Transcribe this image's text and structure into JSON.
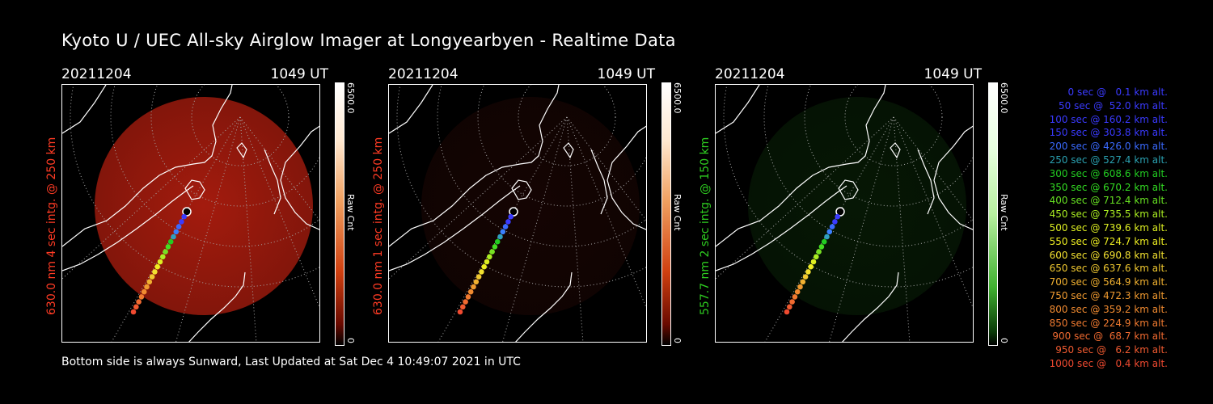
{
  "title": "Kyoto U / UEC All-sky Airglow Imager at Longyearbyen - Realtime Data",
  "footer": "Bottom side is always Sunward, Last Updated at Sat Dec  4 10:49:07 2021 in UTC",
  "panels": [
    {
      "date": "20211204",
      "utc": "1049 UT",
      "ylabel": "630.0 nm 4 sec intg. @ 250 km",
      "label_color": "#ff3b24",
      "colorbar_max": "6500.0",
      "colorbar_min": "0",
      "colorbar_unit": "Raw Cnt",
      "colorscale": "red",
      "glow": "#c02010",
      "glow_brightness": 0.85
    },
    {
      "date": "20211204",
      "utc": "1049 UT",
      "ylabel": "630.0 nm 1 sec intg. @ 250 km",
      "label_color": "#ff3b24",
      "colorbar_max": "6500.0",
      "colorbar_min": "0",
      "colorbar_unit": "Raw Cnt",
      "colorscale": "red",
      "glow": "#3a0c08",
      "glow_brightness": 0.35
    },
    {
      "date": "20211204",
      "utc": "1049 UT",
      "ylabel": "557.7 nm 2 sec intg. @ 150 km",
      "label_color": "#2ecc20",
      "colorbar_max": "6500.0",
      "colorbar_min": "0",
      "colorbar_unit": "Raw Cnt",
      "colorscale": "green",
      "glow": "#0f3a0c",
      "glow_brightness": 0.4
    }
  ],
  "legend": [
    {
      "text": "0 sec @   0.1 km alt.",
      "color": "#3a3aff"
    },
    {
      "text": "50 sec @  52.0 km alt.",
      "color": "#3a3aff"
    },
    {
      "text": "100 sec @ 160.2 km alt.",
      "color": "#3a3aff"
    },
    {
      "text": "150 sec @ 303.8 km alt.",
      "color": "#3a3aff"
    },
    {
      "text": "200 sec @ 426.0 km alt.",
      "color": "#3a6aff"
    },
    {
      "text": "250 sec @ 527.4 km alt.",
      "color": "#2aa0b0"
    },
    {
      "text": "300 sec @ 608.6 km alt.",
      "color": "#22cc22"
    },
    {
      "text": "350 sec @ 670.2 km alt.",
      "color": "#33dd22"
    },
    {
      "text": "400 sec @ 712.4 km alt.",
      "color": "#66e022"
    },
    {
      "text": "450 sec @ 735.5 km alt.",
      "color": "#aaee22"
    },
    {
      "text": "500 sec @ 739.6 km alt.",
      "color": "#ddee22"
    },
    {
      "text": "550 sec @ 724.7 km alt.",
      "color": "#eeee22"
    },
    {
      "text": "600 sec @ 690.8 km alt.",
      "color": "#f2e030"
    },
    {
      "text": "650 sec @ 637.6 km alt.",
      "color": "#f0c830"
    },
    {
      "text": "700 sec @ 564.9 km alt.",
      "color": "#f0b030"
    },
    {
      "text": "750 sec @ 472.3 km alt.",
      "color": "#f09a30"
    },
    {
      "text": "800 sec @ 359.2 km alt.",
      "color": "#f08a30"
    },
    {
      "text": "850 sec @ 224.9 km alt.",
      "color": "#f07a30"
    },
    {
      "text": "900 sec @  68.7 km alt.",
      "color": "#f06a30"
    },
    {
      "text": "950 sec @   6.2 km alt.",
      "color": "#f05a30"
    },
    {
      "text": "1000 sec @   0.4 km alt.",
      "color": "#f04a30"
    }
  ]
}
